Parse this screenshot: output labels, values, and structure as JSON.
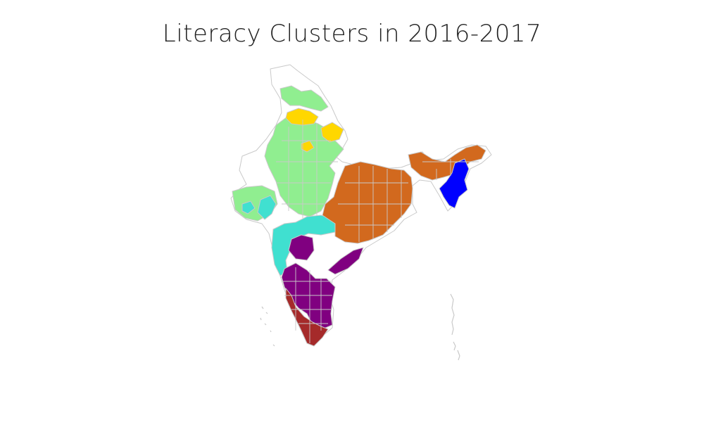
{
  "title": "Literacy Clusters in 2016-2017",
  "colors": {
    "background": "#ffffff",
    "outline": "#c9c9c9",
    "unclustered": "#ffffff"
  },
  "clusters": [
    {
      "id": "light-green",
      "color": "#90ee90"
    },
    {
      "id": "gold",
      "color": "#ffd700"
    },
    {
      "id": "turquoise",
      "color": "#40e0d0"
    },
    {
      "id": "chocolate",
      "color": "#d2691e"
    },
    {
      "id": "blue",
      "color": "#0000ff"
    },
    {
      "id": "purple",
      "color": "#800080"
    },
    {
      "id": "brown",
      "color": "#a52a2a"
    }
  ]
}
